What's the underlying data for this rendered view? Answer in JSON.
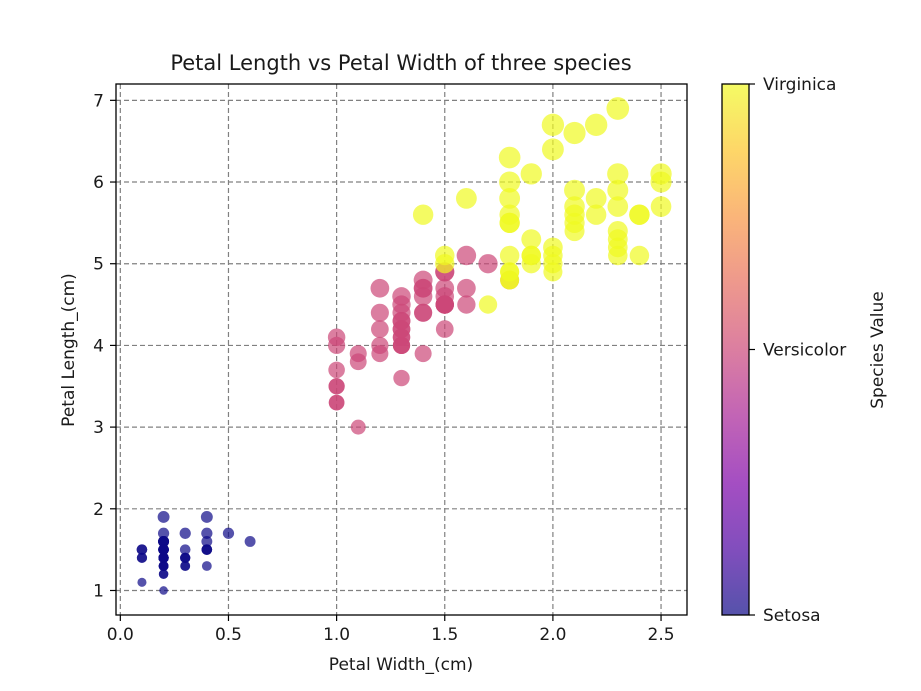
{
  "chart_data": {
    "type": "scatter",
    "title": "Petal Length vs Petal Width of three species",
    "xlabel": "Petal Width_(cm)",
    "ylabel": "Petal Length_(cm)",
    "xlim": [
      -0.02,
      2.62
    ],
    "ylim": [
      0.7,
      7.2
    ],
    "xticks": [
      "0.0",
      "0.5",
      "1.0",
      "1.5",
      "2.0",
      "2.5"
    ],
    "yticks": [
      "1",
      "2",
      "3",
      "4",
      "5",
      "6",
      "7"
    ],
    "grid": true,
    "colorbar": {
      "label": "Species Value",
      "colormap": "plasma",
      "tick_labels": [
        "Setosa",
        "Versicolor",
        "Virginica"
      ]
    },
    "series": [
      {
        "category": "Setosa",
        "color": "#0d0887",
        "points": [
          [
            0.2,
            1.4
          ],
          [
            0.2,
            1.4
          ],
          [
            0.2,
            1.3
          ],
          [
            0.2,
            1.5
          ],
          [
            0.2,
            1.4
          ],
          [
            0.4,
            1.7
          ],
          [
            0.3,
            1.4
          ],
          [
            0.2,
            1.5
          ],
          [
            0.2,
            1.4
          ],
          [
            0.1,
            1.5
          ],
          [
            0.2,
            1.5
          ],
          [
            0.2,
            1.6
          ],
          [
            0.1,
            1.4
          ],
          [
            0.1,
            1.1
          ],
          [
            0.2,
            1.2
          ],
          [
            0.4,
            1.5
          ],
          [
            0.4,
            1.3
          ],
          [
            0.3,
            1.4
          ],
          [
            0.3,
            1.7
          ],
          [
            0.3,
            1.5
          ],
          [
            0.2,
            1.7
          ],
          [
            0.4,
            1.5
          ],
          [
            0.2,
            1.0
          ],
          [
            0.5,
            1.7
          ],
          [
            0.2,
            1.9
          ],
          [
            0.2,
            1.6
          ],
          [
            0.4,
            1.6
          ],
          [
            0.2,
            1.5
          ],
          [
            0.2,
            1.4
          ],
          [
            0.2,
            1.6
          ],
          [
            0.2,
            1.6
          ],
          [
            0.4,
            1.5
          ],
          [
            0.1,
            1.5
          ],
          [
            0.2,
            1.4
          ],
          [
            0.2,
            1.5
          ],
          [
            0.2,
            1.2
          ],
          [
            0.2,
            1.3
          ],
          [
            0.1,
            1.4
          ],
          [
            0.2,
            1.3
          ],
          [
            0.2,
            1.5
          ],
          [
            0.3,
            1.3
          ],
          [
            0.3,
            1.3
          ],
          [
            0.2,
            1.3
          ],
          [
            0.6,
            1.6
          ],
          [
            0.4,
            1.9
          ],
          [
            0.3,
            1.4
          ],
          [
            0.2,
            1.6
          ],
          [
            0.2,
            1.4
          ],
          [
            0.2,
            1.5
          ],
          [
            0.2,
            1.4
          ]
        ]
      },
      {
        "category": "Versicolor",
        "color": "#cc4778",
        "points": [
          [
            1.4,
            4.7
          ],
          [
            1.5,
            4.5
          ],
          [
            1.5,
            4.9
          ],
          [
            1.3,
            4.0
          ],
          [
            1.5,
            4.6
          ],
          [
            1.3,
            4.5
          ],
          [
            1.6,
            4.7
          ],
          [
            1.0,
            3.3
          ],
          [
            1.3,
            4.6
          ],
          [
            1.4,
            3.9
          ],
          [
            1.0,
            3.5
          ],
          [
            1.5,
            4.2
          ],
          [
            1.0,
            4.0
          ],
          [
            1.4,
            4.7
          ],
          [
            1.3,
            3.6
          ],
          [
            1.4,
            4.4
          ],
          [
            1.5,
            4.5
          ],
          [
            1.0,
            4.1
          ],
          [
            1.5,
            4.5
          ],
          [
            1.1,
            3.9
          ],
          [
            1.8,
            4.8
          ],
          [
            1.3,
            4.0
          ],
          [
            1.5,
            4.9
          ],
          [
            1.2,
            4.7
          ],
          [
            1.3,
            4.3
          ],
          [
            1.4,
            4.4
          ],
          [
            1.4,
            4.8
          ],
          [
            1.7,
            5.0
          ],
          [
            1.5,
            4.5
          ],
          [
            1.0,
            3.5
          ],
          [
            1.1,
            3.8
          ],
          [
            1.0,
            3.7
          ],
          [
            1.2,
            3.9
          ],
          [
            1.6,
            5.1
          ],
          [
            1.5,
            4.5
          ],
          [
            1.6,
            4.5
          ],
          [
            1.5,
            4.7
          ],
          [
            1.3,
            4.4
          ],
          [
            1.3,
            4.1
          ],
          [
            1.3,
            4.0
          ],
          [
            1.2,
            4.4
          ],
          [
            1.4,
            4.6
          ],
          [
            1.2,
            4.0
          ],
          [
            1.0,
            3.3
          ],
          [
            1.3,
            4.2
          ],
          [
            1.2,
            4.2
          ],
          [
            1.3,
            4.2
          ],
          [
            1.3,
            4.3
          ],
          [
            1.1,
            3.0
          ],
          [
            1.3,
            4.1
          ]
        ]
      },
      {
        "category": "Virginica",
        "color": "#f0f921",
        "points": [
          [
            2.5,
            6.0
          ],
          [
            1.9,
            5.1
          ],
          [
            2.1,
            5.9
          ],
          [
            1.8,
            5.6
          ],
          [
            2.2,
            5.8
          ],
          [
            2.1,
            6.6
          ],
          [
            1.7,
            4.5
          ],
          [
            1.8,
            6.3
          ],
          [
            1.8,
            5.8
          ],
          [
            2.5,
            6.1
          ],
          [
            2.0,
            5.1
          ],
          [
            1.9,
            5.3
          ],
          [
            2.1,
            5.5
          ],
          [
            2.0,
            5.0
          ],
          [
            2.4,
            5.1
          ],
          [
            2.3,
            5.3
          ],
          [
            1.8,
            5.5
          ],
          [
            2.2,
            6.7
          ],
          [
            2.3,
            6.9
          ],
          [
            1.5,
            5.0
          ],
          [
            2.3,
            5.7
          ],
          [
            2.0,
            4.9
          ],
          [
            2.0,
            6.7
          ],
          [
            1.8,
            4.9
          ],
          [
            2.1,
            5.7
          ],
          [
            1.8,
            6.0
          ],
          [
            1.8,
            4.8
          ],
          [
            1.8,
            4.9
          ],
          [
            2.1,
            5.6
          ],
          [
            1.6,
            5.8
          ],
          [
            1.9,
            6.1
          ],
          [
            2.0,
            6.4
          ],
          [
            2.2,
            5.6
          ],
          [
            1.5,
            5.1
          ],
          [
            1.4,
            5.6
          ],
          [
            2.3,
            6.1
          ],
          [
            2.4,
            5.6
          ],
          [
            1.8,
            5.5
          ],
          [
            1.8,
            4.8
          ],
          [
            2.1,
            5.4
          ],
          [
            2.4,
            5.6
          ],
          [
            2.3,
            5.1
          ],
          [
            1.9,
            5.1
          ],
          [
            2.3,
            5.9
          ],
          [
            2.5,
            5.7
          ],
          [
            2.3,
            5.2
          ],
          [
            1.9,
            5.0
          ],
          [
            2.0,
            5.2
          ],
          [
            2.3,
            5.4
          ],
          [
            1.8,
            5.1
          ]
        ]
      }
    ]
  }
}
